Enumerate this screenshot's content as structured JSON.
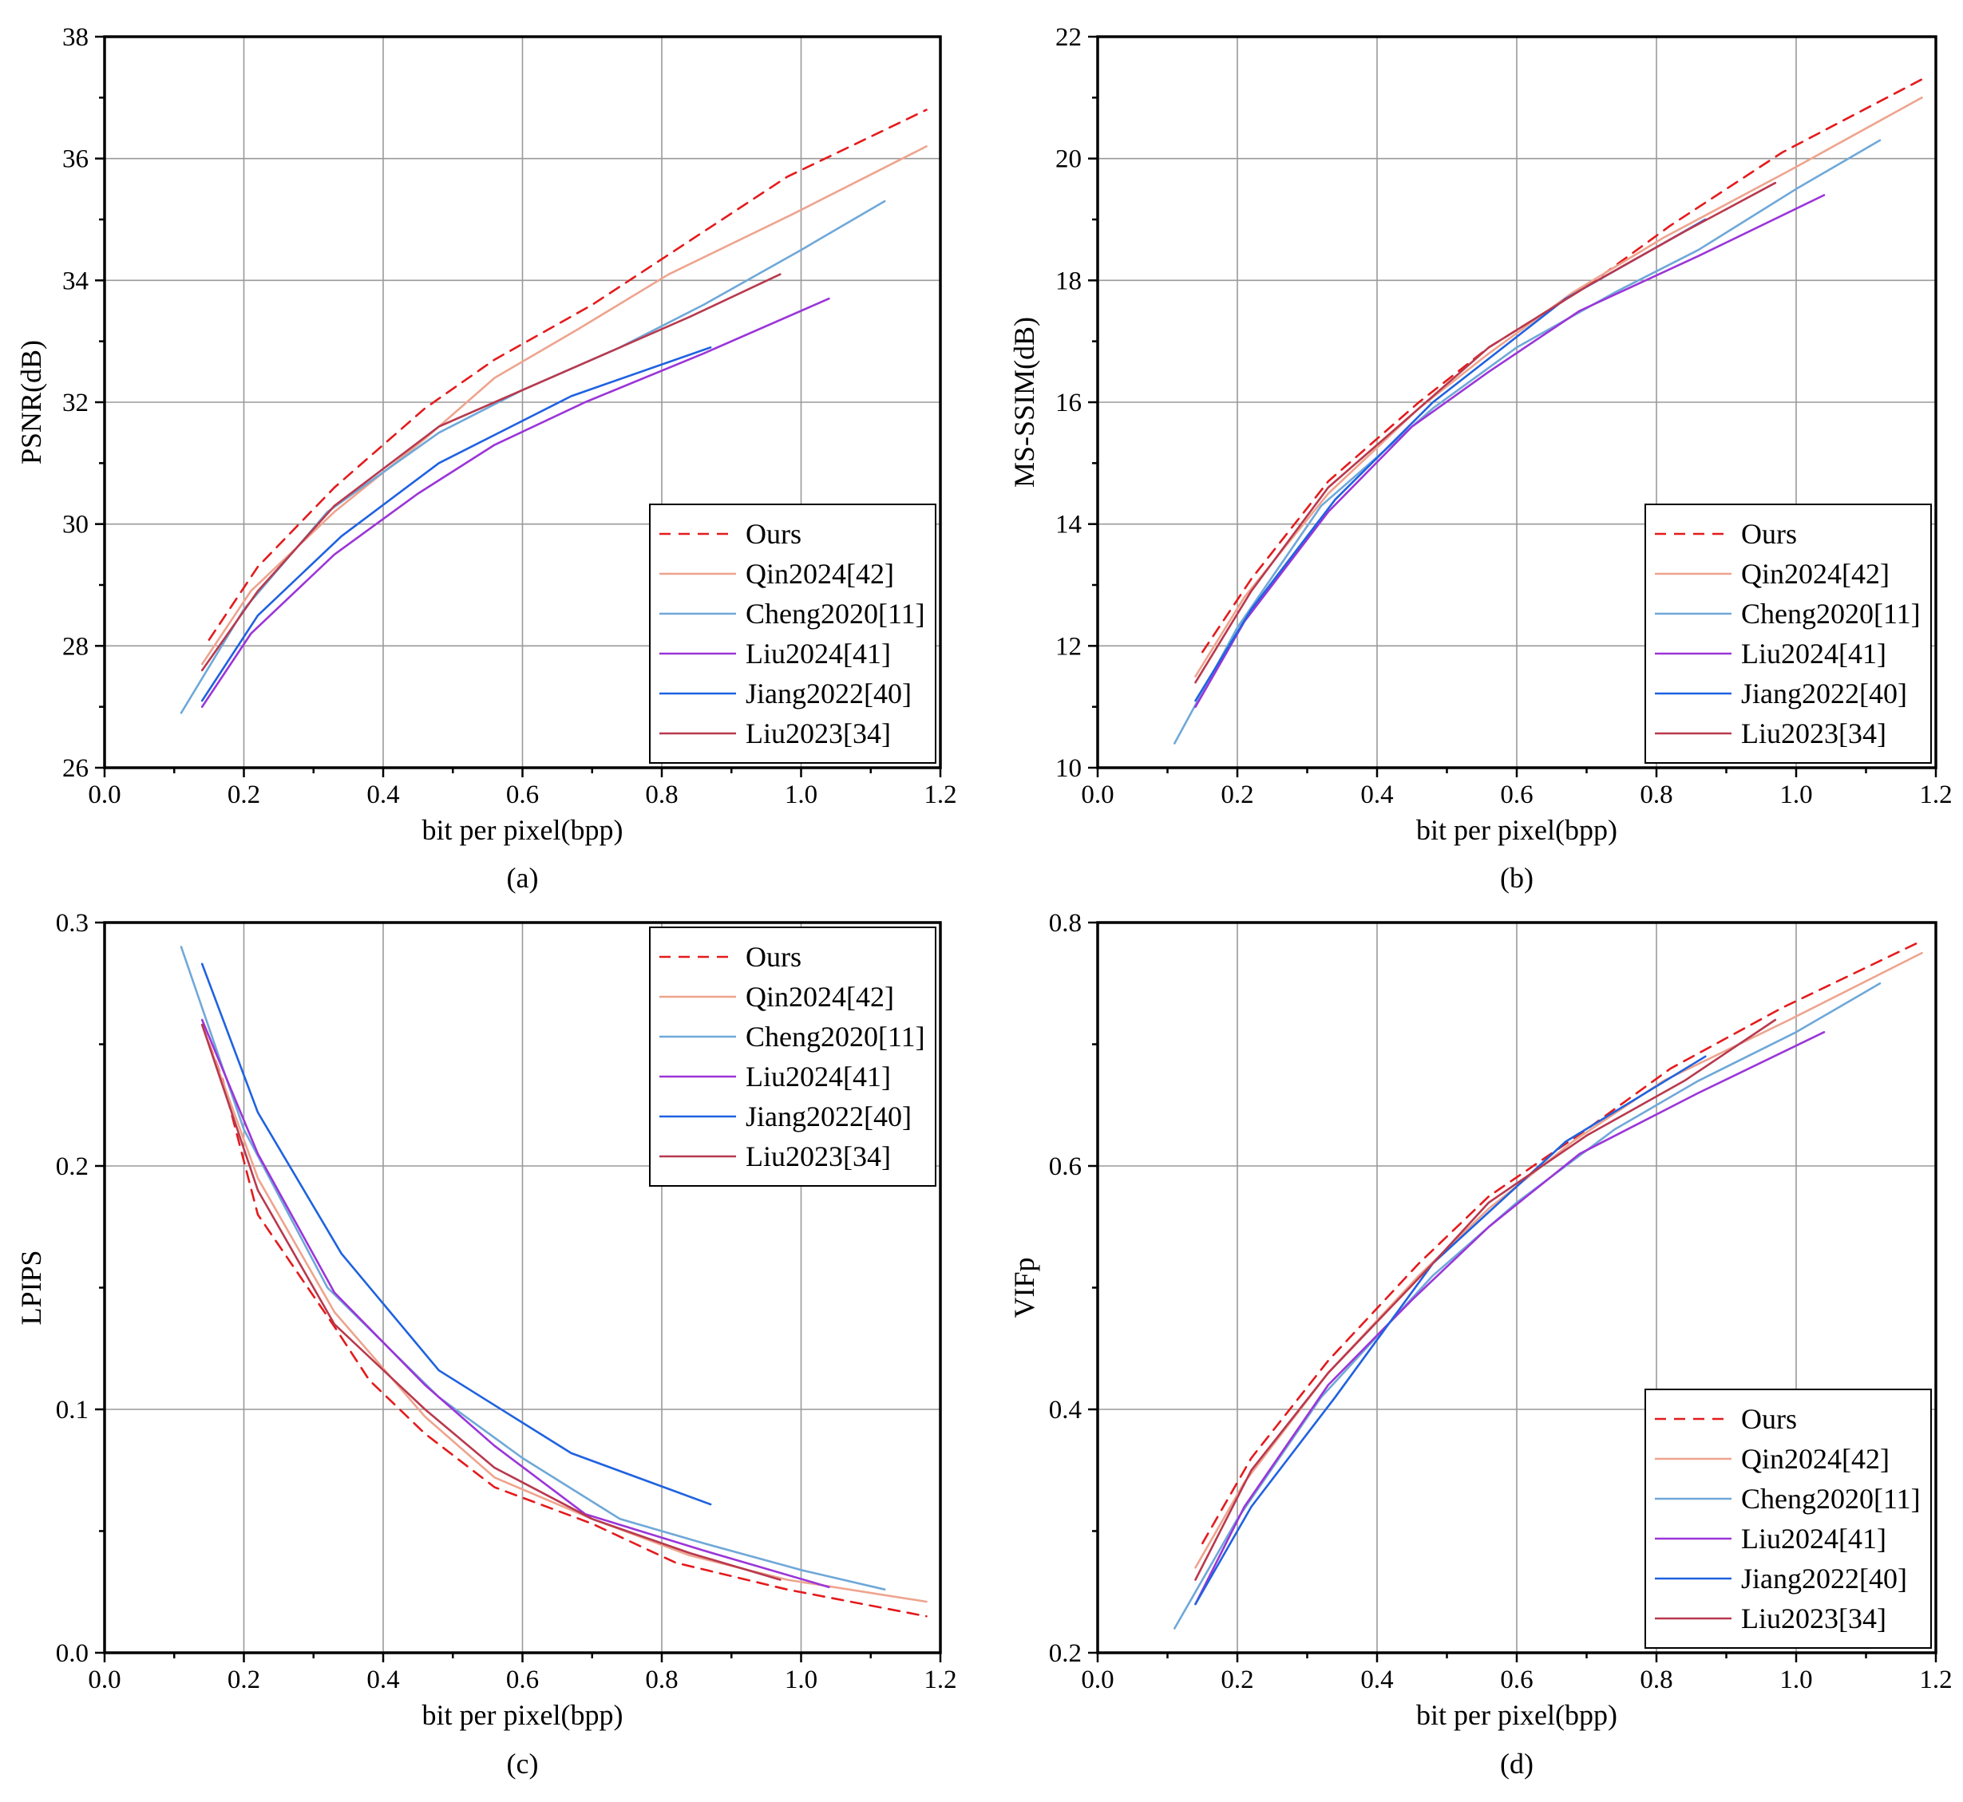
{
  "series_styles": {
    "Ours": {
      "color": "#e41a1c",
      "dash": "14 10"
    },
    "Qin2024[42]": {
      "color": "#eea48e",
      "dash": ""
    },
    "Cheng2020[11]": {
      "color": "#6fa8d8",
      "dash": ""
    },
    "Liu2024[41]": {
      "color": "#9b35d8",
      "dash": ""
    },
    "Jiang2022[40]": {
      "color": "#1f62e0",
      "dash": ""
    },
    "Liu2023[34]": {
      "color": "#b8394e",
      "dash": ""
    }
  },
  "chart_data": [
    {
      "type": "line",
      "caption": "(a)",
      "xlabel": "bit per pixel(bpp)",
      "ylabel": "PSNR(dB)",
      "xlim": [
        0.0,
        1.2
      ],
      "ylim": [
        26,
        38
      ],
      "xticks": [
        0.0,
        0.2,
        0.4,
        0.6,
        0.8,
        1.0,
        1.2
      ],
      "yticks": [
        26,
        28,
        30,
        32,
        34,
        36,
        38
      ],
      "xtick_labels": [
        "0.0",
        "0.2",
        "0.4",
        "0.6",
        "0.8",
        "1.0",
        "1.2"
      ],
      "ytick_labels": [
        "26",
        "28",
        "30",
        "32",
        "34",
        "36",
        "38"
      ],
      "grid": true,
      "legend_position": "bottom-right",
      "series": [
        {
          "name": "Ours",
          "x": [
            0.15,
            0.22,
            0.33,
            0.46,
            0.56,
            0.7,
            0.82,
            0.98,
            1.18
          ],
          "y": [
            28.1,
            29.3,
            30.6,
            31.9,
            32.7,
            33.6,
            34.5,
            35.7,
            36.8
          ]
        },
        {
          "name": "Qin2024[42]",
          "x": [
            0.14,
            0.21,
            0.33,
            0.46,
            0.56,
            0.68,
            0.81,
            0.99,
            1.18
          ],
          "y": [
            27.7,
            28.9,
            30.2,
            31.4,
            32.4,
            33.2,
            34.1,
            35.1,
            36.2
          ]
        },
        {
          "name": "Cheng2020[11]",
          "x": [
            0.11,
            0.2,
            0.32,
            0.48,
            0.6,
            0.74,
            0.86,
            1.0,
            1.12
          ],
          "y": [
            26.9,
            28.6,
            30.2,
            31.5,
            32.2,
            32.9,
            33.6,
            34.5,
            35.3
          ]
        },
        {
          "name": "Liu2024[41]",
          "x": [
            0.14,
            0.21,
            0.33,
            0.45,
            0.56,
            0.69,
            0.86,
            1.04
          ],
          "y": [
            27.0,
            28.2,
            29.5,
            30.5,
            31.3,
            32.0,
            32.8,
            33.7
          ]
        },
        {
          "name": "Jiang2022[40]",
          "x": [
            0.14,
            0.22,
            0.34,
            0.48,
            0.67,
            0.87
          ],
          "y": [
            27.1,
            28.5,
            29.8,
            31.0,
            32.1,
            32.9
          ]
        },
        {
          "name": "Liu2023[34]",
          "x": [
            0.14,
            0.22,
            0.33,
            0.48,
            0.56,
            0.7,
            0.84,
            0.97
          ],
          "y": [
            27.6,
            28.9,
            30.3,
            31.6,
            32.0,
            32.7,
            33.4,
            34.1
          ]
        }
      ]
    },
    {
      "type": "line",
      "caption": "(b)",
      "xlabel": "bit per pixel(bpp)",
      "ylabel": "MS-SSIM(dB)",
      "xlim": [
        0.0,
        1.2
      ],
      "ylim": [
        10,
        22
      ],
      "xticks": [
        0.0,
        0.2,
        0.4,
        0.6,
        0.8,
        1.0,
        1.2
      ],
      "yticks": [
        10,
        12,
        14,
        16,
        18,
        20,
        22
      ],
      "xtick_labels": [
        "0.0",
        "0.2",
        "0.4",
        "0.6",
        "0.8",
        "1.0",
        "1.2"
      ],
      "ytick_labels": [
        "10",
        "12",
        "14",
        "16",
        "18",
        "20",
        "22"
      ],
      "grid": true,
      "legend_position": "bottom-right",
      "series": [
        {
          "name": "Ours",
          "x": [
            0.15,
            0.22,
            0.33,
            0.46,
            0.56,
            0.7,
            0.82,
            0.98,
            1.18
          ],
          "y": [
            11.9,
            13.1,
            14.7,
            16.0,
            16.9,
            17.9,
            18.9,
            20.1,
            21.3
          ]
        },
        {
          "name": "Qin2024[42]",
          "x": [
            0.14,
            0.21,
            0.33,
            0.46,
            0.56,
            0.68,
            0.81,
            0.99,
            1.18
          ],
          "y": [
            11.5,
            12.8,
            14.5,
            15.9,
            16.8,
            17.8,
            18.7,
            19.8,
            21.0
          ]
        },
        {
          "name": "Cheng2020[11]",
          "x": [
            0.11,
            0.2,
            0.32,
            0.48,
            0.6,
            0.74,
            0.86,
            1.0,
            1.12
          ],
          "y": [
            10.4,
            12.3,
            14.3,
            15.9,
            16.9,
            17.8,
            18.5,
            19.5,
            20.3
          ]
        },
        {
          "name": "Liu2024[41]",
          "x": [
            0.14,
            0.21,
            0.33,
            0.45,
            0.56,
            0.69,
            0.86,
            1.04
          ],
          "y": [
            11.0,
            12.4,
            14.2,
            15.6,
            16.5,
            17.5,
            18.4,
            19.4
          ]
        },
        {
          "name": "Jiang2022[40]",
          "x": [
            0.14,
            0.22,
            0.34,
            0.48,
            0.67,
            0.87
          ],
          "y": [
            11.1,
            12.6,
            14.4,
            16.0,
            17.7,
            19.0
          ]
        },
        {
          "name": "Liu2023[34]",
          "x": [
            0.14,
            0.22,
            0.33,
            0.48,
            0.56,
            0.7,
            0.84,
            0.97
          ],
          "y": [
            11.4,
            12.9,
            14.6,
            16.1,
            16.9,
            17.9,
            18.8,
            19.6
          ]
        }
      ]
    },
    {
      "type": "line",
      "caption": "(c)",
      "xlabel": "bit per pixel(bpp)",
      "ylabel": "LPIPS",
      "xlim": [
        0.0,
        1.2
      ],
      "ylim": [
        0.0,
        0.3
      ],
      "xticks": [
        0.0,
        0.2,
        0.4,
        0.6,
        0.8,
        1.0,
        1.2
      ],
      "yticks": [
        0.0,
        0.1,
        0.2,
        0.3
      ],
      "xtick_labels": [
        "0.0",
        "0.2",
        "0.4",
        "0.6",
        "0.8",
        "1.0",
        "1.2"
      ],
      "ytick_labels": [
        "0.0",
        "0.1",
        "0.2",
        "0.3"
      ],
      "grid": true,
      "legend_position": "top-right",
      "series": [
        {
          "name": "Ours",
          "x": [
            0.14,
            0.17,
            0.22,
            0.33,
            0.38,
            0.46,
            0.56,
            0.7,
            0.82,
            0.98,
            1.18
          ],
          "y": [
            0.258,
            0.235,
            0.18,
            0.134,
            0.112,
            0.09,
            0.068,
            0.053,
            0.037,
            0.026,
            0.015
          ]
        },
        {
          "name": "Qin2024[42]",
          "x": [
            0.14,
            0.22,
            0.33,
            0.46,
            0.56,
            0.7,
            0.84,
            0.98,
            1.18
          ],
          "y": [
            0.258,
            0.195,
            0.14,
            0.097,
            0.072,
            0.055,
            0.04,
            0.03,
            0.021
          ]
        },
        {
          "name": "Cheng2020[11]",
          "x": [
            0.11,
            0.2,
            0.32,
            0.48,
            0.6,
            0.74,
            0.86,
            1.0,
            1.12
          ],
          "y": [
            0.29,
            0.215,
            0.15,
            0.105,
            0.08,
            0.055,
            0.045,
            0.034,
            0.026
          ]
        },
        {
          "name": "Liu2024[41]",
          "x": [
            0.14,
            0.22,
            0.33,
            0.46,
            0.56,
            0.69,
            0.86,
            1.04
          ],
          "y": [
            0.26,
            0.205,
            0.148,
            0.11,
            0.085,
            0.057,
            0.042,
            0.027
          ]
        },
        {
          "name": "Jiang2022[40]",
          "x": [
            0.14,
            0.22,
            0.34,
            0.48,
            0.67,
            0.87
          ],
          "y": [
            0.283,
            0.222,
            0.164,
            0.116,
            0.082,
            0.061
          ]
        },
        {
          "name": "Liu2023[34]",
          "x": [
            0.14,
            0.22,
            0.33,
            0.46,
            0.56,
            0.7,
            0.84,
            0.97
          ],
          "y": [
            0.258,
            0.19,
            0.135,
            0.1,
            0.076,
            0.055,
            0.041,
            0.03
          ]
        }
      ]
    },
    {
      "type": "line",
      "caption": "(d)",
      "xlabel": "bit per pixel(bpp)",
      "ylabel": "VIFp",
      "xlim": [
        0.0,
        1.2
      ],
      "ylim": [
        0.2,
        0.8
      ],
      "xticks": [
        0.0,
        0.2,
        0.4,
        0.6,
        0.8,
        1.0,
        1.2
      ],
      "yticks": [
        0.2,
        0.4,
        0.6,
        0.8
      ],
      "xtick_labels": [
        "0.0",
        "0.2",
        "0.4",
        "0.6",
        "0.8",
        "1.0",
        "1.2"
      ],
      "ytick_labels": [
        "0.2",
        "0.4",
        "0.6",
        "0.8"
      ],
      "grid": true,
      "legend_position": "bottom-right",
      "series": [
        {
          "name": "Ours",
          "x": [
            0.15,
            0.22,
            0.33,
            0.46,
            0.56,
            0.7,
            0.82,
            0.98,
            1.18
          ],
          "y": [
            0.29,
            0.36,
            0.44,
            0.52,
            0.575,
            0.63,
            0.68,
            0.73,
            0.785
          ]
        },
        {
          "name": "Qin2024[42]",
          "x": [
            0.14,
            0.21,
            0.33,
            0.46,
            0.56,
            0.68,
            0.81,
            0.99,
            1.18
          ],
          "y": [
            0.27,
            0.34,
            0.43,
            0.51,
            0.565,
            0.62,
            0.67,
            0.72,
            0.775
          ]
        },
        {
          "name": "Cheng2020[11]",
          "x": [
            0.11,
            0.2,
            0.32,
            0.48,
            0.6,
            0.74,
            0.86,
            1.0,
            1.12
          ],
          "y": [
            0.22,
            0.31,
            0.41,
            0.51,
            0.57,
            0.63,
            0.67,
            0.71,
            0.75
          ]
        },
        {
          "name": "Liu2024[41]",
          "x": [
            0.14,
            0.21,
            0.33,
            0.45,
            0.56,
            0.69,
            0.86,
            1.04
          ],
          "y": [
            0.24,
            0.32,
            0.42,
            0.49,
            0.55,
            0.61,
            0.66,
            0.71
          ]
        },
        {
          "name": "Jiang2022[40]",
          "x": [
            0.14,
            0.22,
            0.34,
            0.48,
            0.67,
            0.87
          ],
          "y": [
            0.24,
            0.32,
            0.41,
            0.52,
            0.62,
            0.69
          ]
        },
        {
          "name": "Liu2023[34]",
          "x": [
            0.14,
            0.22,
            0.33,
            0.48,
            0.56,
            0.7,
            0.84,
            0.97
          ],
          "y": [
            0.26,
            0.35,
            0.43,
            0.52,
            0.57,
            0.625,
            0.67,
            0.72
          ]
        }
      ]
    }
  ]
}
